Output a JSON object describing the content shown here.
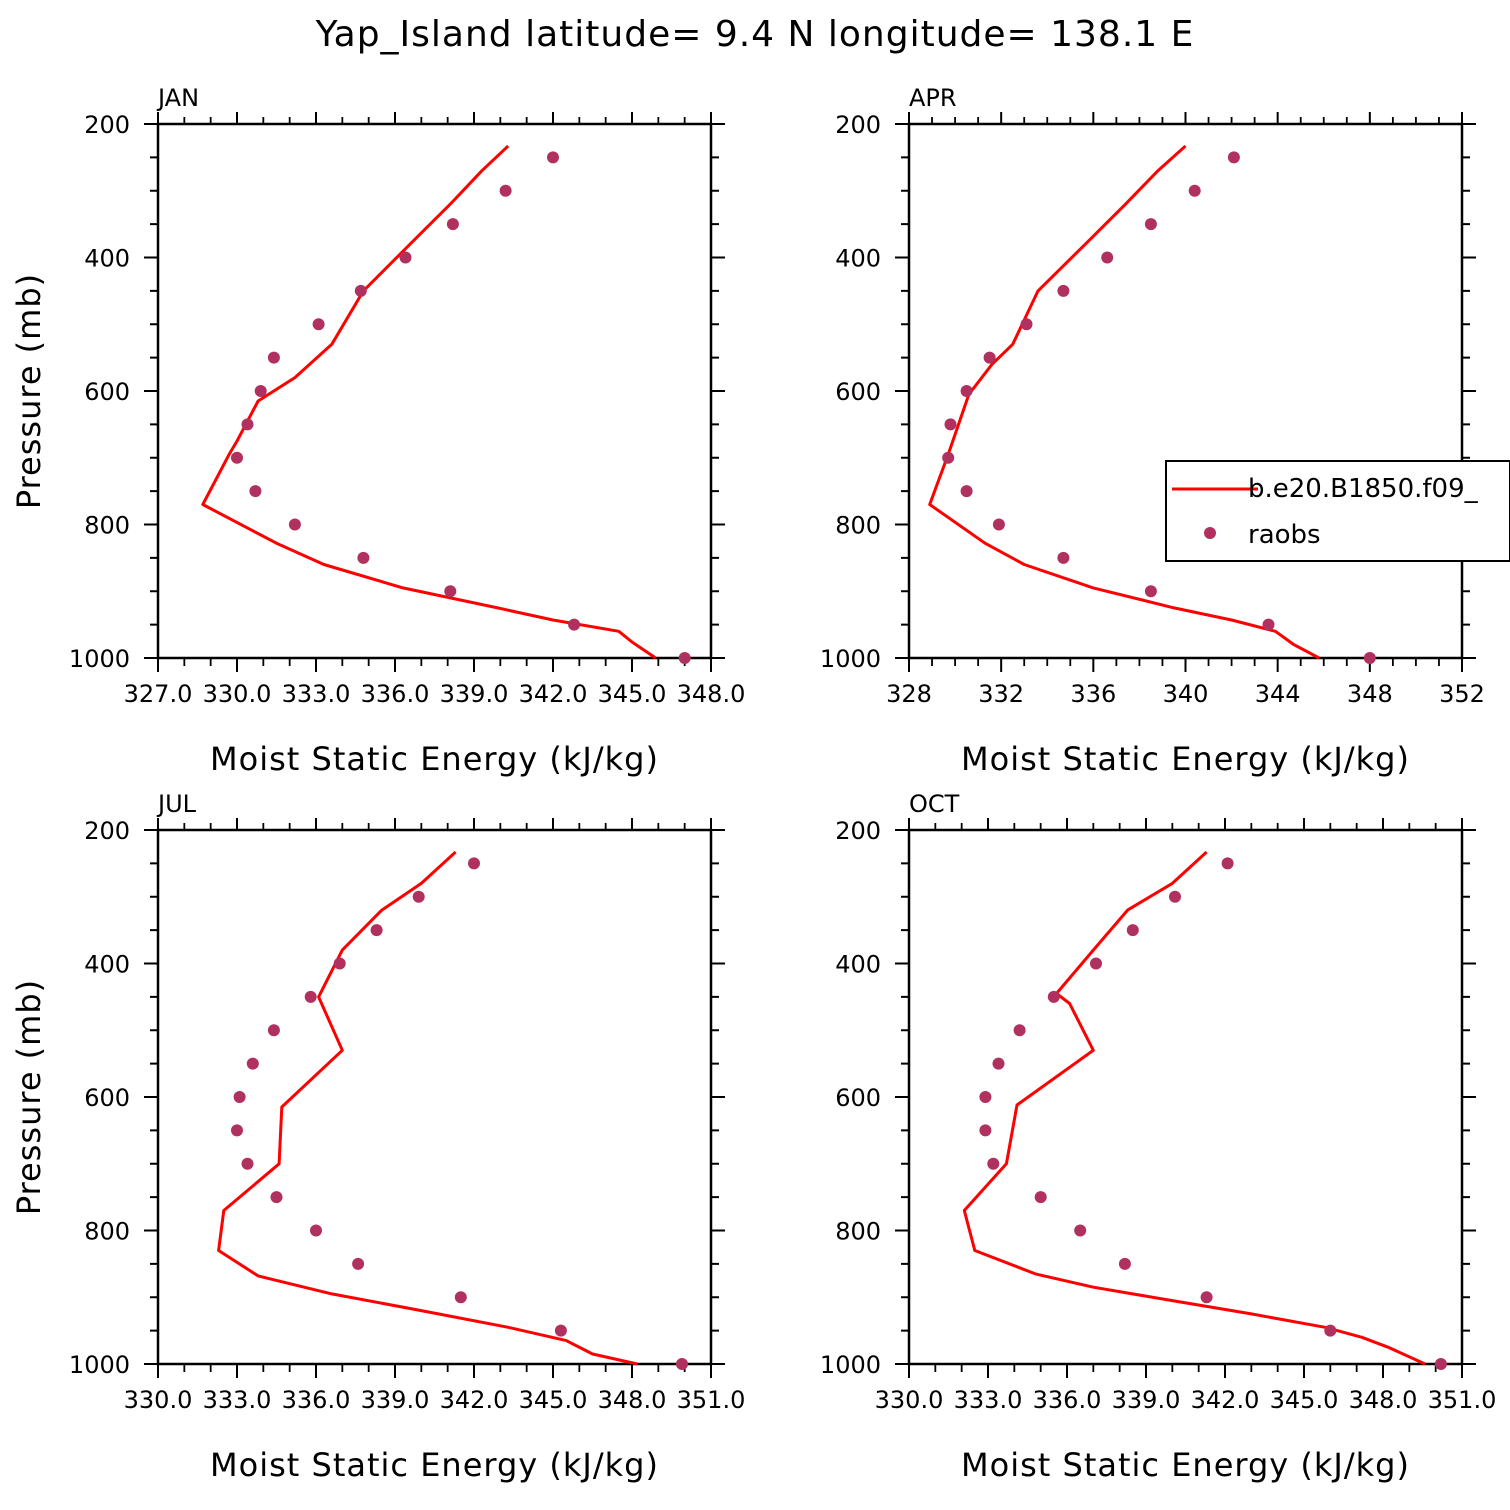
{
  "figure": {
    "title": "Yap_Island  latitude= 9.4 N longitude= 138.1 E"
  },
  "legend": {
    "model_label": "b.e20.B1850.f09_",
    "obs_label": "raobs",
    "model_color": "#ff0000",
    "obs_color": "#b03060"
  },
  "chart_data": [
    {
      "type": "line",
      "panel": "JAN",
      "xlabel": "Moist Static Energy (kJ/kg)",
      "ylabel": "Pressure (mb)",
      "xlim": [
        327.0,
        348.0
      ],
      "ylim": [
        1000,
        200
      ],
      "xticks": [
        327,
        330,
        333,
        336,
        339,
        342,
        345,
        348
      ],
      "xtick_labels": [
        "327.0",
        "330.0",
        "333.0",
        "336.0",
        "339.0",
        "342.0",
        "345.0",
        "348.0"
      ],
      "yticks": [
        200,
        400,
        600,
        800,
        1000
      ],
      "series": [
        {
          "name": "b.e20.B1850.f09_",
          "style": "line",
          "points": [
            [
              340.3,
              233
            ],
            [
              339.3,
              270
            ],
            [
              338.1,
              320
            ],
            [
              336.7,
              375
            ],
            [
              334.8,
              450
            ],
            [
              333.6,
              530
            ],
            [
              332.2,
              580
            ],
            [
              330.8,
              615
            ],
            [
              330.0,
              675
            ],
            [
              329.7,
              695
            ],
            [
              328.7,
              770
            ],
            [
              331.5,
              828
            ],
            [
              333.3,
              860
            ],
            [
              336.3,
              895
            ],
            [
              339.9,
              925
            ],
            [
              342.0,
              943
            ],
            [
              344.5,
              960
            ],
            [
              345.0,
              976
            ],
            [
              345.9,
              1000
            ]
          ]
        },
        {
          "name": "raobs",
          "style": "points",
          "points": [
            [
              342.0,
              250
            ],
            [
              340.2,
              300
            ],
            [
              338.2,
              350
            ],
            [
              336.4,
              400
            ],
            [
              334.7,
              450
            ],
            [
              333.1,
              500
            ],
            [
              331.4,
              550
            ],
            [
              330.9,
              600
            ],
            [
              330.4,
              650
            ],
            [
              330.0,
              700
            ],
            [
              330.7,
              750
            ],
            [
              332.2,
              800
            ],
            [
              334.8,
              850
            ],
            [
              338.1,
              900
            ],
            [
              342.8,
              950
            ],
            [
              347.0,
              1000
            ]
          ]
        }
      ]
    },
    {
      "type": "line",
      "panel": "APR",
      "xlabel": "Moist Static Energy (kJ/kg)",
      "ylabel": "",
      "xlim": [
        328,
        352
      ],
      "ylim": [
        1000,
        200
      ],
      "xticks": [
        328,
        332,
        336,
        340,
        344,
        348,
        352
      ],
      "xtick_labels": [
        "328",
        "332",
        "336",
        "340",
        "344",
        "348",
        "352"
      ],
      "yticks": [
        200,
        400,
        600,
        800,
        1000
      ],
      "series": [
        {
          "name": "b.e20.B1850.f09_",
          "style": "line",
          "points": [
            [
              340.0,
              233
            ],
            [
              338.8,
              270
            ],
            [
              337.4,
              320
            ],
            [
              335.8,
              375
            ],
            [
              333.6,
              450
            ],
            [
              332.5,
              530
            ],
            [
              331.6,
              560
            ],
            [
              330.6,
              605
            ],
            [
              330.0,
              665
            ],
            [
              329.7,
              695
            ],
            [
              328.9,
              770
            ],
            [
              331.3,
              828
            ],
            [
              333.0,
              860
            ],
            [
              336.0,
              895
            ],
            [
              339.5,
              925
            ],
            [
              342.0,
              943
            ],
            [
              343.9,
              960
            ],
            [
              344.7,
              980
            ],
            [
              345.8,
              1000
            ]
          ]
        },
        {
          "name": "raobs",
          "style": "points",
          "points": [
            [
              342.1,
              250
            ],
            [
              340.4,
              300
            ],
            [
              338.5,
              350
            ],
            [
              336.6,
              400
            ],
            [
              334.7,
              450
            ],
            [
              333.1,
              500
            ],
            [
              331.5,
              550
            ],
            [
              330.5,
              600
            ],
            [
              329.8,
              650
            ],
            [
              329.7,
              700
            ],
            [
              330.5,
              750
            ],
            [
              331.9,
              800
            ],
            [
              334.7,
              850
            ],
            [
              338.5,
              900
            ],
            [
              343.6,
              950
            ],
            [
              348.0,
              1000
            ]
          ]
        }
      ]
    },
    {
      "type": "line",
      "panel": "JUL",
      "xlabel": "Moist Static Energy (kJ/kg)",
      "ylabel": "Pressure (mb)",
      "xlim": [
        330.0,
        351.0
      ],
      "ylim": [
        1000,
        200
      ],
      "xticks": [
        330,
        333,
        336,
        339,
        342,
        345,
        348,
        351
      ],
      "xtick_labels": [
        "330.0",
        "333.0",
        "336.0",
        "339.0",
        "342.0",
        "345.0",
        "348.0",
        "351.0"
      ],
      "yticks": [
        200,
        400,
        600,
        800,
        1000
      ],
      "series": [
        {
          "name": "b.e20.B1850.f09_",
          "style": "line",
          "points": [
            [
              341.3,
              233
            ],
            [
              340.0,
              280
            ],
            [
              338.5,
              320
            ],
            [
              337.0,
              380
            ],
            [
              336.1,
              450
            ],
            [
              337.0,
              530
            ],
            [
              334.7,
              615
            ],
            [
              334.6,
              700
            ],
            [
              332.5,
              770
            ],
            [
              332.3,
              830
            ],
            [
              333.8,
              868
            ],
            [
              336.6,
              895
            ],
            [
              340.0,
              920
            ],
            [
              343.3,
              945
            ],
            [
              345.5,
              965
            ],
            [
              346.5,
              985
            ],
            [
              348.2,
              1000
            ]
          ]
        },
        {
          "name": "raobs",
          "style": "points",
          "points": [
            [
              342.0,
              250
            ],
            [
              339.9,
              300
            ],
            [
              338.3,
              350
            ],
            [
              336.9,
              400
            ],
            [
              335.8,
              450
            ],
            [
              334.4,
              500
            ],
            [
              333.6,
              550
            ],
            [
              333.1,
              600
            ],
            [
              333.0,
              650
            ],
            [
              333.4,
              700
            ],
            [
              334.5,
              750
            ],
            [
              336.0,
              800
            ],
            [
              337.6,
              850
            ],
            [
              341.5,
              900
            ],
            [
              345.3,
              950
            ],
            [
              349.9,
              1000
            ]
          ]
        }
      ]
    },
    {
      "type": "line",
      "panel": "OCT",
      "xlabel": "Moist Static Energy (kJ/kg)",
      "ylabel": "",
      "xlim": [
        330.0,
        351.0
      ],
      "ylim": [
        1000,
        200
      ],
      "xticks": [
        330,
        333,
        336,
        339,
        342,
        345,
        348,
        351
      ],
      "xtick_labels": [
        "330.0",
        "333.0",
        "336.0",
        "339.0",
        "342.0",
        "345.0",
        "348.0",
        "351.0"
      ],
      "yticks": [
        200,
        400,
        600,
        800,
        1000
      ],
      "series": [
        {
          "name": "b.e20.B1850.f09_",
          "style": "line",
          "points": [
            [
              341.3,
              233
            ],
            [
              340.0,
              280
            ],
            [
              338.3,
              320
            ],
            [
              337.0,
              380
            ],
            [
              335.6,
              445
            ],
            [
              336.1,
              460
            ],
            [
              337.0,
              530
            ],
            [
              334.1,
              612
            ],
            [
              333.7,
              700
            ],
            [
              332.1,
              770
            ],
            [
              332.5,
              830
            ],
            [
              334.8,
              865
            ],
            [
              337.0,
              885
            ],
            [
              340.0,
              905
            ],
            [
              343.0,
              925
            ],
            [
              345.8,
              945
            ],
            [
              347.2,
              960
            ],
            [
              348.2,
              975
            ],
            [
              349.6,
              1000
            ]
          ]
        },
        {
          "name": "raobs",
          "style": "points",
          "points": [
            [
              342.1,
              250
            ],
            [
              340.1,
              300
            ],
            [
              338.5,
              350
            ],
            [
              337.1,
              400
            ],
            [
              335.5,
              450
            ],
            [
              334.2,
              500
            ],
            [
              333.4,
              550
            ],
            [
              332.9,
              600
            ],
            [
              332.9,
              650
            ],
            [
              333.2,
              700
            ],
            [
              335.0,
              750
            ],
            [
              336.5,
              800
            ],
            [
              338.2,
              850
            ],
            [
              341.3,
              900
            ],
            [
              346.0,
              950
            ],
            [
              350.2,
              1000
            ]
          ]
        }
      ]
    }
  ]
}
